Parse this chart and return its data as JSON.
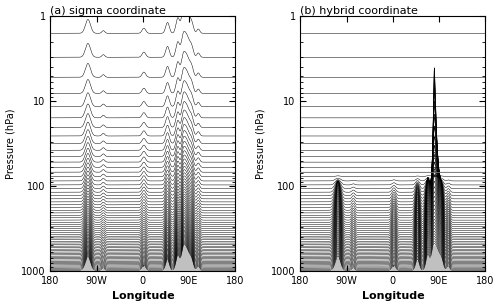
{
  "title_a": "(a) sigma coordinate",
  "title_b": "(b) hybrid coordinate",
  "xlabel": "Longitude",
  "ylabel": "Pressure (hPa)",
  "xmin": -180,
  "xmax": 180,
  "xticks": [
    -180,
    -90,
    0,
    90,
    180
  ],
  "xticklabels": [
    "180",
    "90W",
    "0",
    "90E",
    "180"
  ],
  "ymin": 1,
  "ymax": 1000,
  "n_levels": 64,
  "p_top": 1.0,
  "p_surface": 1013.25,
  "transition_pressure": 68.0,
  "topo_color": "#c0c0c0",
  "line_color": "#000000",
  "background_color": "#ffffff",
  "figsize": [
    5.0,
    3.07
  ],
  "dpi": 100
}
